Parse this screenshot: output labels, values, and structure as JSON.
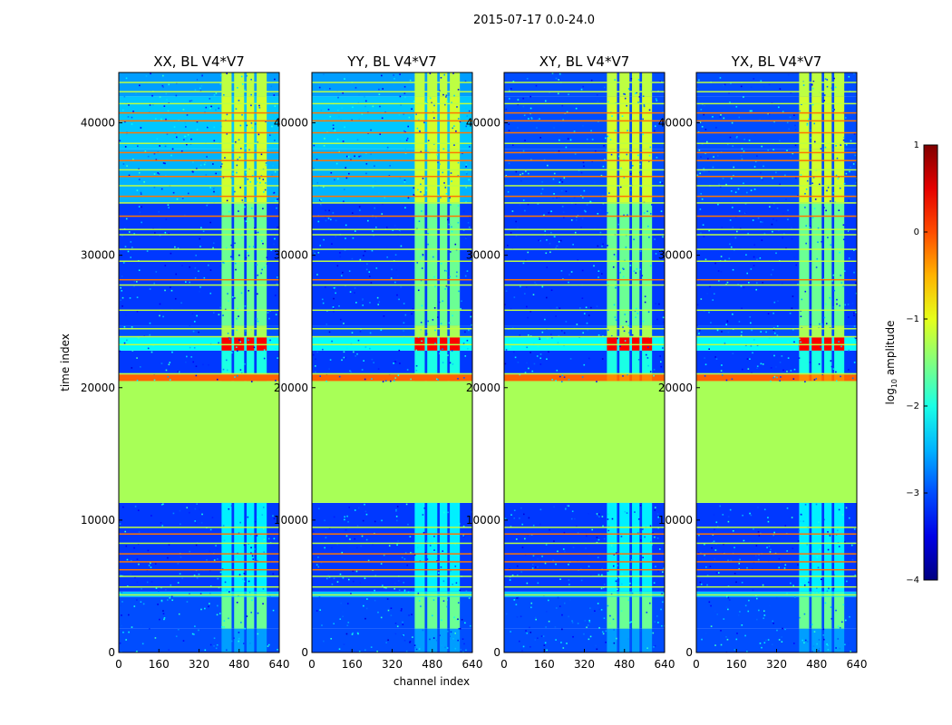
{
  "chart_data": {
    "type": "heatmap",
    "suptitle": "2015-07-17 0.0-24.0",
    "panels": [
      {
        "title": "XX, BL V4*V7",
        "pol": "XX"
      },
      {
        "title": "YY, BL V4*V7",
        "pol": "YY"
      },
      {
        "title": "XY, BL V4*V7",
        "pol": "XY"
      },
      {
        "title": "YX, BL V4*V7",
        "pol": "YX"
      }
    ],
    "xlabel": "channel index",
    "ylabel": "time index",
    "xlim": [
      0,
      640
    ],
    "ylim": [
      0,
      43800
    ],
    "xticks": [
      0,
      160,
      320,
      480,
      640
    ],
    "xtick_labels": [
      "0",
      "160",
      "320",
      "480",
      "640"
    ],
    "yticks": [
      0,
      10000,
      20000,
      30000,
      40000
    ],
    "ytick_labels": [
      "0",
      "10000",
      "20000",
      "30000",
      "40000"
    ],
    "flagged_time_range": [
      11300,
      20500
    ],
    "flagged_level": -1.3,
    "active_channel_bands": [
      [
        410,
        450
      ],
      [
        460,
        500
      ],
      [
        510,
        540
      ],
      [
        550,
        590
      ]
    ],
    "colorbar": {
      "label_prefix": "log",
      "label_sub": "10",
      "label_suffix": " amplitude",
      "range": [
        -4,
        1
      ],
      "ticks": [
        1,
        0,
        -1,
        -2,
        -3,
        -4
      ],
      "tick_labels": [
        "1",
        "0",
        "−1",
        "−2",
        "−3",
        "−4"
      ],
      "colormap": "jet"
    }
  }
}
